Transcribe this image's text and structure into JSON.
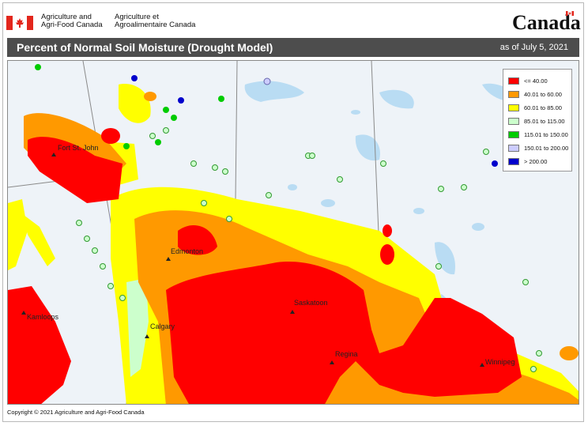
{
  "header": {
    "department_en": "Agriculture and\nAgri-Food Canada",
    "department_fr": "Agriculture et\nAgroalimentaire Canada",
    "wordmark": "Canada"
  },
  "title_bar": {
    "title": "Percent of Normal Soil Moisture (Drought Model)",
    "date": "as of July 5, 2021"
  },
  "legend": {
    "items": [
      {
        "label": "<= 40.00",
        "color": "#ff0000"
      },
      {
        "label": "40.01  to  60.00",
        "color": "#ff9900"
      },
      {
        "label": "60.01  to  85.00",
        "color": "#ffff00"
      },
      {
        "label": "85.01  to  115.00",
        "color": "#ccffcc"
      },
      {
        "label": "115.01  to  150.00",
        "color": "#00cc00"
      },
      {
        "label": "150.01  to  200.00",
        "color": "#ccccff"
      },
      {
        "label": "> 200.00",
        "color": "#0000cc"
      }
    ]
  },
  "cities": [
    {
      "name": "Fort St. John"
    },
    {
      "name": "Edmonton"
    },
    {
      "name": "Kamloops"
    },
    {
      "name": "Calgary"
    },
    {
      "name": "Saskatoon"
    },
    {
      "name": "Regina"
    },
    {
      "name": "Winnipeg"
    }
  ],
  "footer": {
    "copyright": "Copyright © 2021 Agriculture and Agri-Food Canada"
  },
  "colors": {
    "title_bar": "#4d4d4d",
    "base_map": "#eaf1f7",
    "lakes": "#b9dcf3",
    "flag_red": "#e3261c"
  }
}
